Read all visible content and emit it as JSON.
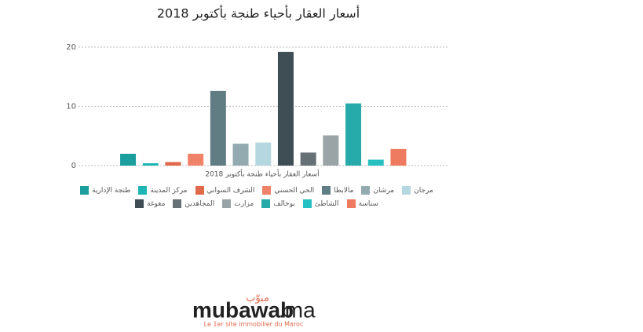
{
  "chart_data": {
    "type": "bar",
    "title": "أسعار العقار بأحياء طنجة بأكتوبر 2018",
    "xlabel": "أسعار العقار بأحياء طنجة بأكتوبر 2018",
    "ylim": [
      0,
      20
    ],
    "yticks": [
      0,
      10,
      20
    ],
    "grid": true,
    "series": [
      {
        "name": "طنجة الإدارية",
        "color": "#1a9e9e",
        "values": [
          2.0
        ]
      },
      {
        "name": "مركز المدينة",
        "color": "#1fb5b5",
        "values": [
          0.4
        ]
      },
      {
        "name": "الشرف السواني",
        "color": "#e0684b",
        "values": [
          0.6
        ]
      },
      {
        "name": "الحي الحسني",
        "color": "#f0826a",
        "values": [
          2.0
        ]
      },
      {
        "name": "مالابطا",
        "color": "#607d84",
        "values": [
          12.6
        ]
      },
      {
        "name": "مرشان",
        "color": "#92aab0",
        "values": [
          3.7
        ]
      },
      {
        "name": "مرجان",
        "color": "#b5d8e0",
        "values": [
          3.9
        ]
      },
      {
        "name": "مغوغة",
        "color": "#3f4e55",
        "values": [
          19.2
        ]
      },
      {
        "name": "المجاهدين",
        "color": "#667176",
        "values": [
          2.2
        ]
      },
      {
        "name": "مزارت",
        "color": "#9aa3a5",
        "values": [
          5.1
        ]
      },
      {
        "name": "بوخالف",
        "color": "#27aaaa",
        "values": [
          10.5
        ]
      },
      {
        "name": "الشاطئ",
        "color": "#26c0c0",
        "values": [
          1.0
        ]
      },
      {
        "name": "سناسة",
        "color": "#ee7a5f",
        "values": [
          2.8
        ]
      }
    ]
  },
  "logo": {
    "arabic": "مبوّب",
    "brand": "mubawab",
    "tld": ".ma",
    "tagline": "Le 1er site immobilier du Maroc"
  }
}
